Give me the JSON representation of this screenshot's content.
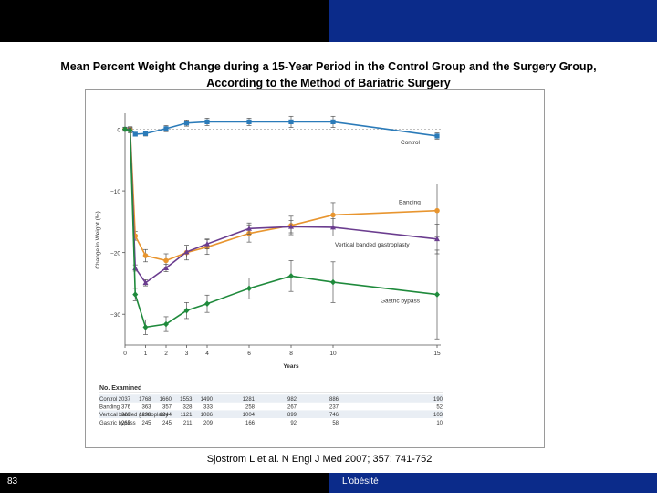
{
  "slide": {
    "title_line1": "Mean Percent Weight Change during a 15-Year Period in the Control Group and the Surgery Group,",
    "title_line2": "According to the Method of Bariatric Surgery",
    "citation": "Sjostrom L et al. N Engl J Med 2007; 357: 741-752",
    "page_number": "83",
    "footer_label": "L'obésité"
  },
  "colors": {
    "header_accent": "#0b2b8a"
  },
  "chart_data": {
    "type": "line",
    "title": "Mean Percent Weight Change during a 15-Year Period in the Control Group and the Surgery Group, According to the Method of Bariatric Surgery",
    "xlabel": "Years",
    "ylabel": "Change in Weight (%)",
    "xlim": [
      0,
      15
    ],
    "ylim": [
      -35,
      2
    ],
    "x_ticks": [
      0,
      1,
      2,
      3,
      4,
      6,
      8,
      10,
      15
    ],
    "y_ticks": [
      0,
      -10,
      -20,
      -30
    ],
    "y_tick_labels": [
      "0",
      "−10",
      "−20",
      "−30"
    ],
    "legend": "inline labels at line ends",
    "series": [
      {
        "name": "Control",
        "color": "#2b7bb9",
        "marker": "square",
        "x": [
          0,
          0.25,
          0.5,
          1,
          2,
          3,
          4,
          6,
          8,
          10,
          15
        ],
        "y": [
          0,
          0,
          -0.8,
          -0.7,
          0.1,
          1.0,
          1.2,
          1.2,
          1.2,
          1.2,
          -1.1
        ],
        "err": [
          0.3,
          0.3,
          0.3,
          0.4,
          0.5,
          0.5,
          0.6,
          0.6,
          0.9,
          0.9,
          0.5
        ]
      },
      {
        "name": "Banding",
        "color": "#e8952f",
        "marker": "circle",
        "x": [
          0,
          0.25,
          0.5,
          1,
          2,
          3,
          4,
          6,
          8,
          10,
          15
        ],
        "y": [
          0,
          0,
          -17.3,
          -20.5,
          -21.3,
          -20.0,
          -19.1,
          -16.9,
          -15.6,
          -13.9,
          -13.2
        ],
        "err": [
          0.3,
          0.4,
          0.7,
          1.0,
          1.1,
          1.2,
          1.2,
          1.4,
          1.5,
          2.0,
          4.3
        ]
      },
      {
        "name": "Vertical banded gastroplasty",
        "color": "#6b3d8f",
        "marker": "triangle",
        "x": [
          0,
          0.25,
          0.5,
          1,
          2,
          3,
          4,
          6,
          8,
          10,
          15
        ],
        "y": [
          0,
          0,
          -22.5,
          -24.9,
          -22.5,
          -19.9,
          -18.6,
          -16.1,
          -15.8,
          -15.9,
          -17.8
        ],
        "err": [
          0.3,
          0.4,
          0.5,
          0.5,
          0.6,
          0.8,
          0.8,
          0.9,
          1.0,
          1.4,
          2.4
        ]
      },
      {
        "name": "Gastric bypass",
        "color": "#1f8a3c",
        "marker": "diamond",
        "x": [
          0,
          0.25,
          0.5,
          1,
          2,
          3,
          4,
          6,
          8,
          10,
          15
        ],
        "y": [
          0,
          -0.2,
          -26.8,
          -32.1,
          -31.6,
          -29.4,
          -28.3,
          -25.8,
          -23.8,
          -24.8,
          -26.8
        ],
        "err": [
          0.3,
          0.4,
          1.0,
          1.2,
          1.2,
          1.3,
          1.4,
          1.7,
          2.5,
          3.3,
          7.2
        ]
      }
    ],
    "numbers_table": {
      "heading": "No. Examined",
      "rows": [
        {
          "label": "Control",
          "values": [
            "2037",
            "1768",
            "1660",
            "1553",
            "1490",
            "1281",
            "982",
            "886",
            "190"
          ]
        },
        {
          "label": "Banding",
          "values": [
            "376",
            "363",
            "357",
            "328",
            "333",
            "258",
            "267",
            "237",
            "52"
          ]
        },
        {
          "label": "Vertical banded gastroplasty",
          "values": [
            "1369",
            "1298",
            "1244",
            "1121",
            "1086",
            "1004",
            "899",
            "746",
            "103"
          ]
        },
        {
          "label": "Gastric bypass",
          "values": [
            "265",
            "245",
            "245",
            "211",
            "209",
            "166",
            "92",
            "58",
            "10"
          ]
        }
      ]
    }
  }
}
